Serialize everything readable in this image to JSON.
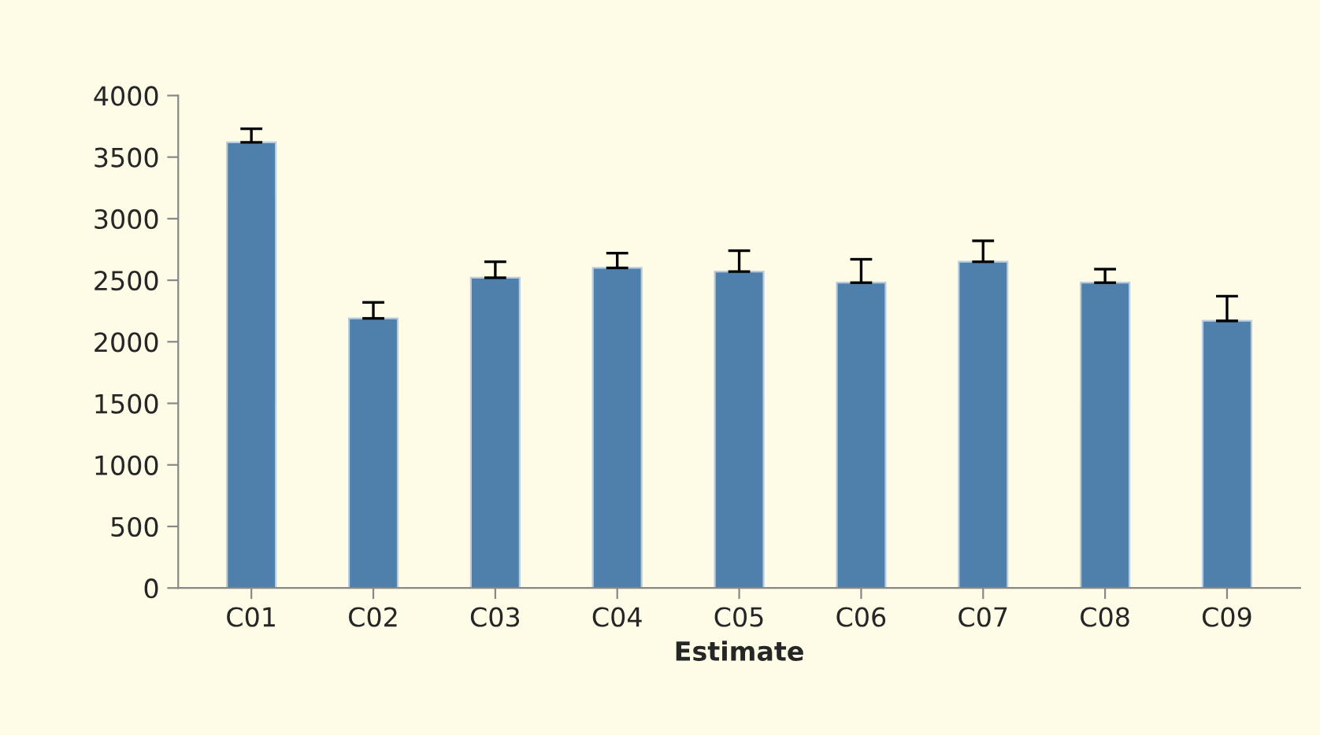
{
  "chart_data": {
    "type": "bar",
    "xlabel": "Estimate",
    "categories": [
      "C01",
      "C02",
      "C03",
      "C04",
      "C05",
      "C06",
      "C07",
      "C08",
      "C09"
    ],
    "values": [
      3620,
      2190,
      2520,
      2600,
      2570,
      2480,
      2650,
      2480,
      2170
    ],
    "errors": [
      [
        3620,
        3730
      ],
      [
        2190,
        2320
      ],
      [
        2520,
        2650
      ],
      [
        2600,
        2720
      ],
      [
        2570,
        2740
      ],
      [
        2480,
        2670
      ],
      [
        2650,
        2820
      ],
      [
        2480,
        2590
      ],
      [
        2170,
        2370
      ]
    ],
    "color": "#4f7fab",
    "ylim": [
      0,
      4000
    ],
    "yticks": [
      0,
      500,
      1000,
      1500,
      2000,
      2500,
      3000,
      3500,
      4000
    ],
    "grid": false,
    "legend": false
  }
}
